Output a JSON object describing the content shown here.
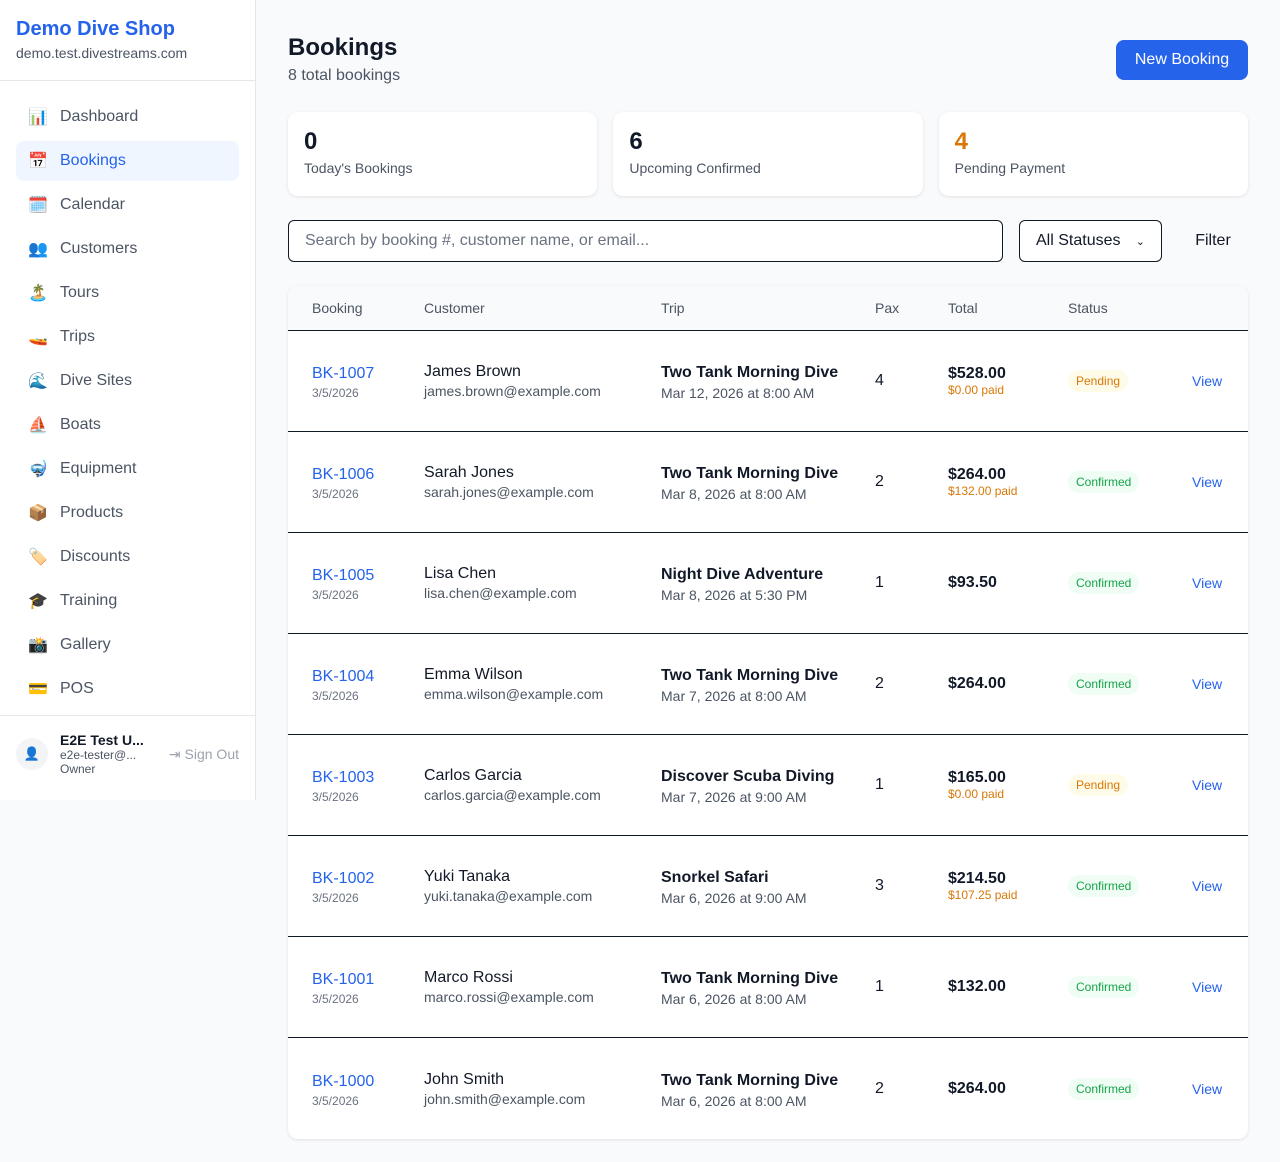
{
  "sidebar": {
    "shop_name": "Demo Dive Shop",
    "domain": "demo.test.divestreams.com",
    "items": [
      {
        "label": "Dashboard",
        "icon": "📊"
      },
      {
        "label": "Bookings",
        "icon": "📅",
        "active": true
      },
      {
        "label": "Calendar",
        "icon": "🗓️"
      },
      {
        "label": "Customers",
        "icon": "👥"
      },
      {
        "label": "Tours",
        "icon": "🏝️"
      },
      {
        "label": "Trips",
        "icon": "🚤"
      },
      {
        "label": "Dive Sites",
        "icon": "🌊"
      },
      {
        "label": "Boats",
        "icon": "⛵"
      },
      {
        "label": "Equipment",
        "icon": "🤿"
      },
      {
        "label": "Products",
        "icon": "📦"
      },
      {
        "label": "Discounts",
        "icon": "🏷️"
      },
      {
        "label": "Training",
        "icon": "🎓"
      },
      {
        "label": "Gallery",
        "icon": "📸"
      },
      {
        "label": "POS",
        "icon": "💳"
      }
    ],
    "user": {
      "name": "E2E Test U...",
      "email": "e2e-tester@...",
      "role": "Owner",
      "sign_out": "Sign Out"
    }
  },
  "header": {
    "title": "Bookings",
    "subtitle": "8 total bookings",
    "new_button": "New Booking"
  },
  "stats": [
    {
      "value": "0",
      "label": "Today's Bookings",
      "color": "#111827"
    },
    {
      "value": "6",
      "label": "Upcoming Confirmed",
      "color": "#111827"
    },
    {
      "value": "4",
      "label": "Pending Payment",
      "color": "#d97706"
    }
  ],
  "search": {
    "placeholder": "Search by booking #, customer name, or email...",
    "status_select": "All Statuses",
    "filter_label": "Filter"
  },
  "table": {
    "headers": [
      "Booking",
      "Customer",
      "Trip",
      "Pax",
      "Total",
      "Status"
    ],
    "rows": [
      {
        "id": "BK-1007",
        "date": "3/5/2026",
        "customer": "James Brown",
        "email": "james.brown@example.com",
        "trip": "Two Tank Morning Dive",
        "trip_date": "Mar 12, 2026 at 8:00 AM",
        "pax": "4",
        "total": "$528.00",
        "paid": "$0.00 paid",
        "status": "Pending",
        "action": "View"
      },
      {
        "id": "BK-1006",
        "date": "3/5/2026",
        "customer": "Sarah Jones",
        "email": "sarah.jones@example.com",
        "trip": "Two Tank Morning Dive",
        "trip_date": "Mar 8, 2026 at 8:00 AM",
        "pax": "2",
        "total": "$264.00",
        "paid": "$132.00 paid",
        "status": "Confirmed",
        "action": "View"
      },
      {
        "id": "BK-1005",
        "date": "3/5/2026",
        "customer": "Lisa Chen",
        "email": "lisa.chen@example.com",
        "trip": "Night Dive Adventure",
        "trip_date": "Mar 8, 2026 at 5:30 PM",
        "pax": "1",
        "total": "$93.50",
        "paid": "",
        "status": "Confirmed",
        "action": "View"
      },
      {
        "id": "BK-1004",
        "date": "3/5/2026",
        "customer": "Emma Wilson",
        "email": "emma.wilson@example.com",
        "trip": "Two Tank Morning Dive",
        "trip_date": "Mar 7, 2026 at 8:00 AM",
        "pax": "2",
        "total": "$264.00",
        "paid": "",
        "status": "Confirmed",
        "action": "View"
      },
      {
        "id": "BK-1003",
        "date": "3/5/2026",
        "customer": "Carlos Garcia",
        "email": "carlos.garcia@example.com",
        "trip": "Discover Scuba Diving",
        "trip_date": "Mar 7, 2026 at 9:00 AM",
        "pax": "1",
        "total": "$165.00",
        "paid": "$0.00 paid",
        "status": "Pending",
        "action": "View"
      },
      {
        "id": "BK-1002",
        "date": "3/5/2026",
        "customer": "Yuki Tanaka",
        "email": "yuki.tanaka@example.com",
        "trip": "Snorkel Safari",
        "trip_date": "Mar 6, 2026 at 9:00 AM",
        "pax": "3",
        "total": "$214.50",
        "paid": "$107.25 paid",
        "status": "Confirmed",
        "action": "View"
      },
      {
        "id": "BK-1001",
        "date": "3/5/2026",
        "customer": "Marco Rossi",
        "email": "marco.rossi@example.com",
        "trip": "Two Tank Morning Dive",
        "trip_date": "Mar 6, 2026 at 8:00 AM",
        "pax": "1",
        "total": "$132.00",
        "paid": "",
        "status": "Confirmed",
        "action": "View"
      },
      {
        "id": "BK-1000",
        "date": "3/5/2026",
        "customer": "John Smith",
        "email": "john.smith@example.com",
        "trip": "Two Tank Morning Dive",
        "trip_date": "Mar 6, 2026 at 8:00 AM",
        "pax": "2",
        "total": "$264.00",
        "paid": "",
        "status": "Confirmed",
        "action": "View"
      }
    ]
  }
}
